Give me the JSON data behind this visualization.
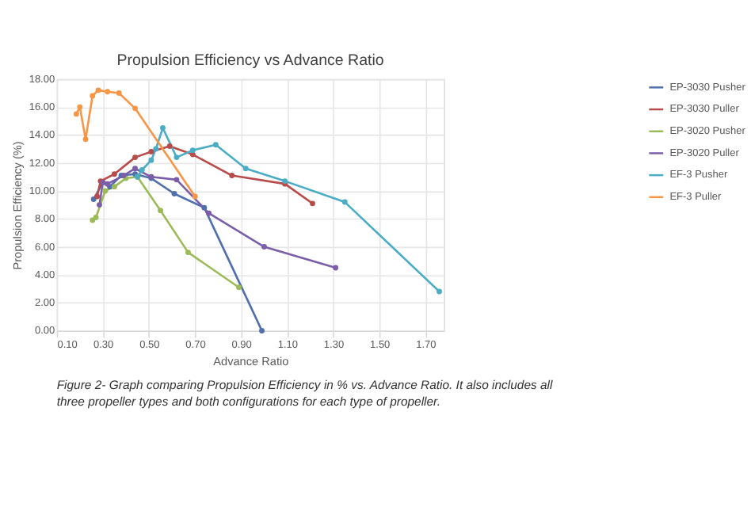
{
  "chart_data": {
    "type": "line",
    "title": "Propulsion Efficiency vs Advance Ratio",
    "xlabel": "Advance Ratio",
    "ylabel": "Propulsion Efficiency (%)",
    "xlim": [
      0.1,
      1.78
    ],
    "xticks": [
      {
        "value": 0.1,
        "label": "0.10"
      },
      {
        "value": 0.3,
        "label": "0.30"
      },
      {
        "value": 0.5,
        "label": "0.50"
      },
      {
        "value": 0.7,
        "label": "0.70"
      },
      {
        "value": 0.9,
        "label": "0.90"
      },
      {
        "value": 1.1,
        "label": "1.10"
      },
      {
        "value": 1.3,
        "label": "1.30"
      },
      {
        "value": 1.5,
        "label": "1.50"
      },
      {
        "value": 1.7,
        "label": "1.70"
      }
    ],
    "ylim": [
      0,
      18
    ],
    "yticks": [
      {
        "value": 0,
        "label": "0.00"
      },
      {
        "value": 2,
        "label": "2.00"
      },
      {
        "value": 4,
        "label": "4.00"
      },
      {
        "value": 6,
        "label": "6.00"
      },
      {
        "value": 8,
        "label": "8.00"
      },
      {
        "value": 10,
        "label": "10.00"
      },
      {
        "value": 12,
        "label": "12.00"
      },
      {
        "value": 14,
        "label": "14.00"
      },
      {
        "value": 16,
        "label": "16.00"
      },
      {
        "value": 18,
        "label": "18.00"
      }
    ],
    "grid": true,
    "legend": "right",
    "marker": "circle",
    "line_style": "solid",
    "annotations": [
      "Figure 2- Graph comparing Propulsion Efficiency in % vs. Advance Ratio. It also includes all three propeller types and both configurations for each type of propeller."
    ],
    "series": [
      {
        "name": "EP-3030 Pusher",
        "color": "#4f6fad",
        "x": [
          0.26,
          0.3,
          0.33,
          0.38,
          0.44,
          0.51,
          0.61,
          0.74,
          0.99
        ],
        "values": [
          9.4,
          10.6,
          10.3,
          11.1,
          11.2,
          10.9,
          9.8,
          8.8,
          0
        ]
      },
      {
        "name": "EP-3030 Puller",
        "color": "#b84c4a",
        "x": [
          0.275,
          0.29,
          0.35,
          0.44,
          0.51,
          0.59,
          0.69,
          0.86,
          1.09,
          1.21
        ],
        "values": [
          9.6,
          10.7,
          11.2,
          12.4,
          12.8,
          13.2,
          12.6,
          11.1,
          10.5,
          9.1
        ]
      },
      {
        "name": "EP-3020 Pusher",
        "color": "#9bbb59",
        "x": [
          0.255,
          0.27,
          0.31,
          0.35,
          0.4,
          0.45,
          0.55,
          0.67,
          0.89
        ],
        "values": [
          7.9,
          8.1,
          10.0,
          10.3,
          10.9,
          11.0,
          8.6,
          5.6,
          3.1
        ]
      },
      {
        "name": "EP-3020 Puller",
        "color": "#7b5ea7",
        "x": [
          0.285,
          0.3,
          0.32,
          0.39,
          0.44,
          0.51,
          0.62,
          0.76,
          1.0,
          1.31
        ],
        "values": [
          9.0,
          10.6,
          10.5,
          11.1,
          11.6,
          11.0,
          10.8,
          8.4,
          6.0,
          4.5
        ]
      },
      {
        "name": "EF-3 Pusher",
        "color": "#4bacc6",
        "x": [
          0.45,
          0.47,
          0.51,
          0.53,
          0.56,
          0.62,
          0.69,
          0.79,
          0.92,
          1.09,
          1.35,
          1.76
        ],
        "values": [
          11.0,
          11.5,
          12.2,
          13.0,
          14.5,
          12.4,
          12.9,
          13.3,
          11.6,
          10.7,
          9.2,
          2.8
        ]
      },
      {
        "name": "EF-3 Puller",
        "color": "#f79646",
        "x": [
          0.185,
          0.2,
          0.225,
          0.255,
          0.28,
          0.32,
          0.37,
          0.44,
          0.7
        ],
        "values": [
          15.5,
          16.0,
          13.7,
          16.8,
          17.2,
          17.1,
          17.0,
          15.9,
          9.6
        ]
      }
    ]
  }
}
